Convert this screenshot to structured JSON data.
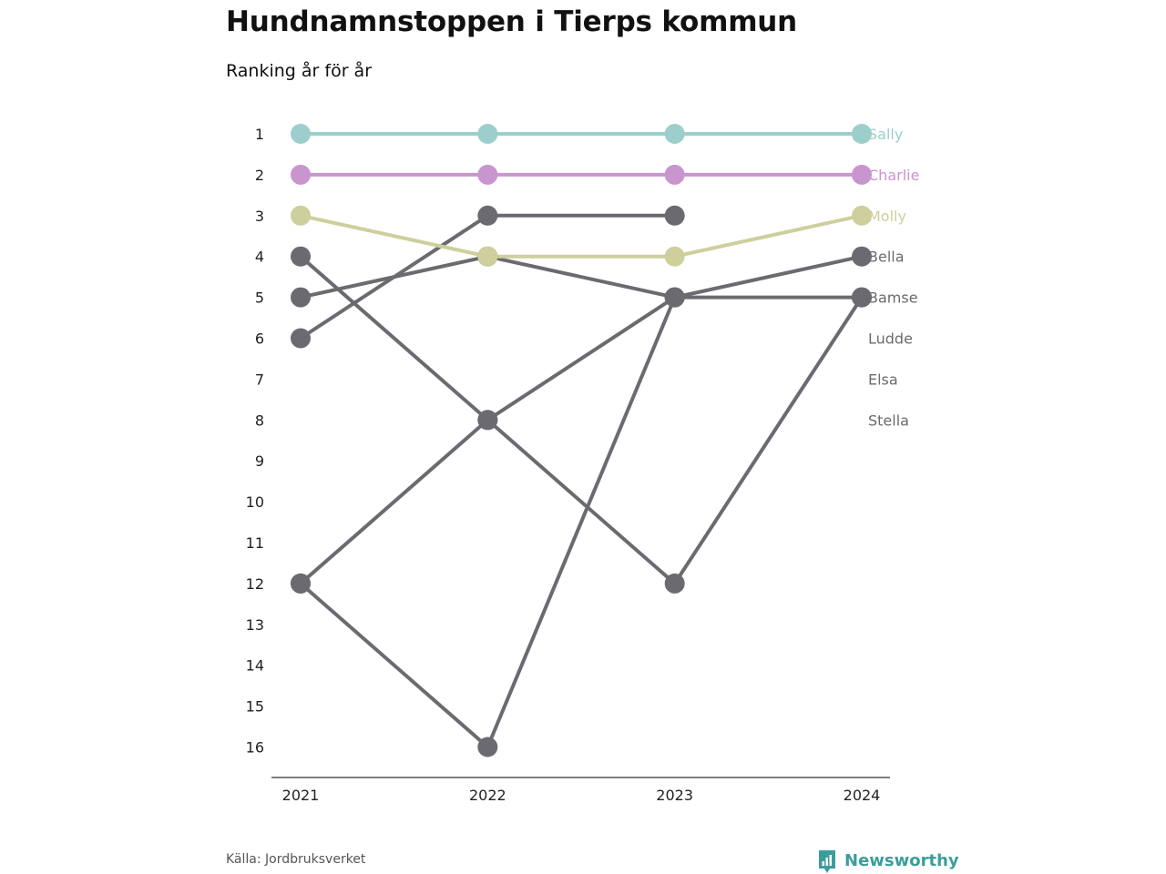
{
  "title": "Hundnamnstoppen i Tierps kommun",
  "subtitle": "Ranking år för år",
  "source": "Källa: Jordbruksverket",
  "brand": {
    "name": "Newsworthy",
    "icon": "bar-chart-speech-bubble-icon",
    "color": "#3a9e9b"
  },
  "chart_data": {
    "type": "line",
    "title": "Hundnamnstoppen i Tierps kommun",
    "subtitle": "Ranking år för år",
    "x": [
      "2021",
      "2022",
      "2023",
      "2024"
    ],
    "y_ticks": [
      "1",
      "2",
      "3",
      "4",
      "5",
      "6",
      "7",
      "8",
      "9",
      "10",
      "11",
      "12",
      "13",
      "14",
      "15",
      "16"
    ],
    "ylim": [
      1,
      16
    ],
    "y_inverted": true,
    "grid": false,
    "legend": "direct labels at right",
    "series": [
      {
        "name": "Sally",
        "values": [
          1,
          1,
          1,
          1
        ],
        "color": "#9ccfcc"
      },
      {
        "name": "Charlie",
        "values": [
          2,
          2,
          2,
          2
        ],
        "color": "#c995cf"
      },
      {
        "name": "Molly",
        "values": [
          3,
          4,
          4,
          3
        ],
        "color": "#cecf9d"
      },
      {
        "name": "Bella",
        "values": [
          5,
          4,
          5,
          4
        ],
        "color": "#6b6a70"
      },
      {
        "name": "Bamse",
        "values": [
          12,
          16,
          5,
          5
        ],
        "color": "#6b6a70"
      },
      {
        "name": "Ludde",
        "values": [
          6,
          3,
          3,
          null
        ],
        "color": "#6b6a70"
      },
      {
        "name": "Elsa",
        "values": [
          12,
          8,
          5,
          null
        ],
        "color": "#6b6a70"
      },
      {
        "name": "Stella",
        "values": [
          4,
          8,
          12,
          5
        ],
        "color": "#6b6a70"
      }
    ],
    "end_labels": [
      "Sally",
      "Charlie",
      "Molly",
      "Bella",
      "Bamse",
      "Ludde",
      "Elsa",
      "Stella"
    ],
    "end_label_colors": [
      "#9ccfcc",
      "#c995cf",
      "#cecf9d",
      "#6b6a70",
      "#6b6a70",
      "#6b6a70",
      "#6b6a70",
      "#6b6a70"
    ]
  }
}
